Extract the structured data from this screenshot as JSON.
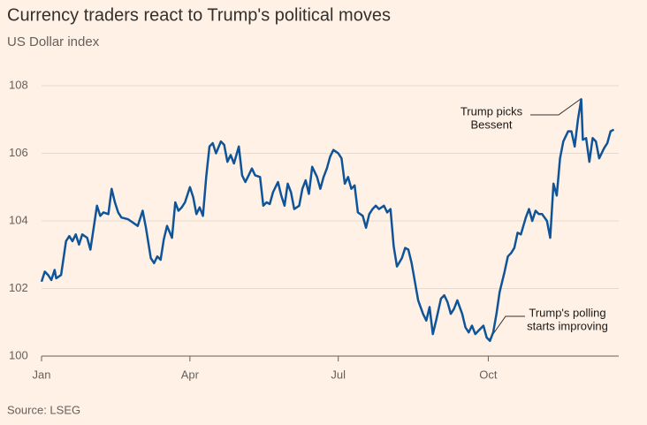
{
  "chart_data": {
    "type": "line",
    "title": "Currency traders react to Trump's political moves",
    "subtitle": "US Dollar index",
    "source": "Source: LSEG",
    "annotations": [
      [
        "Trump picks",
        "Bessent"
      ],
      [
        "Trump's polling",
        "starts improving"
      ]
    ],
    "xlim": [
      0,
      354
    ],
    "xticks": [
      {
        "value": 0,
        "label": "Jan"
      },
      {
        "value": 91,
        "label": "Apr"
      },
      {
        "value": 182,
        "label": "Jul"
      },
      {
        "value": 274,
        "label": "Oct"
      }
    ],
    "ylim": [
      100,
      108
    ],
    "yticks": [
      100,
      102,
      104,
      106,
      108
    ],
    "grid": true,
    "series": [
      {
        "name": "US Dollar index",
        "color": "#0f5499",
        "x": [
          0,
          2,
          4,
          6,
          8,
          9,
          12,
          15,
          17,
          19,
          21,
          23,
          25,
          28,
          30,
          32,
          34,
          36,
          38,
          41,
          43,
          45,
          47,
          49,
          53,
          56,
          59,
          62,
          64,
          67,
          69,
          71,
          73,
          75,
          77,
          80,
          82,
          84,
          86,
          88,
          91,
          93,
          95,
          97,
          99,
          101,
          103,
          105,
          107,
          110,
          112,
          114,
          116,
          118,
          121,
          123,
          125,
          127,
          129,
          131,
          134,
          136,
          138,
          140,
          142,
          145,
          147,
          149,
          151,
          153,
          155,
          158,
          160,
          162,
          164,
          166,
          169,
          171,
          173,
          175,
          177,
          179,
          182,
          184,
          186,
          188,
          190,
          192,
          194,
          197,
          199,
          201,
          203,
          205,
          207,
          210,
          212,
          214,
          216,
          218,
          221,
          223,
          225,
          227,
          229,
          231,
          234,
          236,
          238,
          240,
          242,
          245,
          247,
          249,
          251,
          253,
          255,
          258,
          260,
          262,
          264,
          266,
          268,
          271,
          273,
          275,
          277,
          279,
          281,
          284,
          286,
          288,
          290,
          292,
          294,
          297,
          299,
          301,
          303,
          305,
          307,
          310,
          312,
          314,
          316,
          318,
          320,
          323,
          325,
          327,
          329,
          331,
          332,
          334,
          336,
          338,
          340,
          342,
          345,
          347,
          349,
          351
        ],
        "values": [
          102.2,
          102.5,
          102.4,
          102.25,
          102.55,
          102.3,
          102.4,
          103.4,
          103.55,
          103.4,
          103.6,
          103.3,
          103.6,
          103.5,
          103.15,
          103.8,
          104.45,
          104.15,
          104.25,
          104.2,
          104.95,
          104.55,
          104.25,
          104.1,
          104.05,
          103.95,
          103.85,
          104.3,
          103.8,
          102.9,
          102.75,
          102.95,
          102.85,
          103.45,
          103.85,
          103.5,
          104.55,
          104.3,
          104.4,
          104.55,
          105.0,
          104.7,
          104.2,
          104.4,
          104.15,
          105.3,
          106.2,
          106.3,
          106.0,
          106.35,
          106.25,
          105.75,
          105.95,
          105.7,
          106.2,
          105.35,
          105.15,
          105.35,
          105.55,
          105.35,
          105.3,
          104.45,
          104.55,
          104.5,
          104.85,
          105.15,
          104.75,
          104.45,
          105.1,
          104.85,
          104.35,
          104.45,
          104.95,
          105.2,
          104.8,
          105.6,
          105.3,
          104.95,
          105.3,
          105.55,
          105.9,
          106.1,
          106.0,
          105.85,
          105.1,
          105.3,
          104.95,
          105.05,
          104.25,
          104.15,
          103.8,
          104.2,
          104.35,
          104.45,
          104.35,
          104.45,
          104.25,
          104.35,
          103.25,
          102.65,
          102.9,
          103.2,
          103.15,
          102.75,
          102.2,
          101.65,
          101.25,
          101.05,
          101.45,
          100.65,
          101.05,
          101.7,
          101.8,
          101.6,
          101.25,
          101.4,
          101.65,
          101.25,
          100.85,
          100.7,
          100.9,
          100.65,
          100.75,
          100.9,
          100.55,
          100.45,
          100.7,
          101.25,
          101.9,
          102.5,
          102.95,
          103.05,
          103.2,
          103.65,
          103.6,
          104.1,
          104.35,
          104.0,
          104.3,
          104.2,
          104.2,
          104.0,
          103.5,
          105.1,
          104.75,
          105.85,
          106.35,
          106.65,
          106.65,
          106.2,
          107.0,
          107.6,
          106.4,
          106.45,
          105.75,
          106.45,
          106.35,
          105.85,
          106.15,
          106.3,
          106.65,
          106.7
        ]
      }
    ]
  }
}
